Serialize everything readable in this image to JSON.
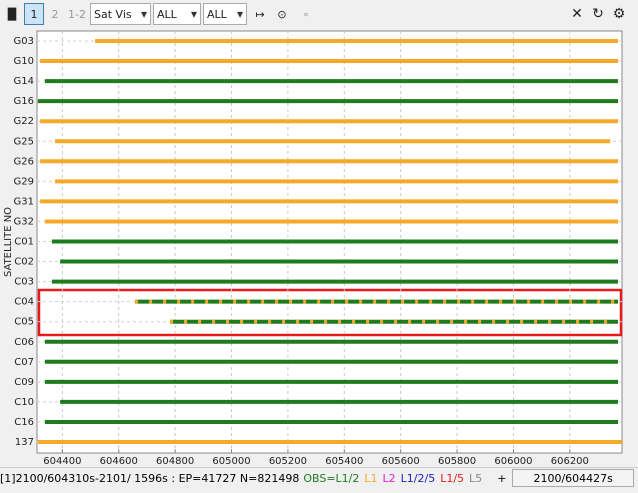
{
  "toolbar": {
    "pages": [
      "1",
      "2",
      "1-2"
    ],
    "selects": [
      "Sat Vis",
      "ALL",
      "ALL"
    ]
  },
  "chart_data": {
    "type": "timeline",
    "y_label": "SATELLITE NO",
    "xlim": [
      604310,
      606385
    ],
    "xticks": [
      604400,
      604600,
      604800,
      605000,
      605200,
      605400,
      605600,
      605800,
      606000,
      606200
    ],
    "grid": true,
    "series": [
      {
        "name": "G03",
        "color": "#f4aa28",
        "span": [
          604516,
          606371
        ]
      },
      {
        "name": "G10",
        "color": "#f4aa28",
        "span": [
          604321,
          606371
        ]
      },
      {
        "name": "G14",
        "color": "#1e7b1e",
        "span": [
          604338,
          606371
        ]
      },
      {
        "name": "G16",
        "color": "#1e7b1e",
        "span": [
          604313,
          606371
        ]
      },
      {
        "name": "G22",
        "color": "#f4aa28",
        "span": [
          604321,
          606371
        ]
      },
      {
        "name": "G25",
        "color": "#f4aa28",
        "span": [
          604374,
          606343
        ]
      },
      {
        "name": "G26",
        "color": "#f4aa28",
        "span": [
          604321,
          606371
        ]
      },
      {
        "name": "G29",
        "color": "#f4aa28",
        "span": [
          604374,
          606371
        ]
      },
      {
        "name": "G31",
        "color": "#f4aa28",
        "span": [
          604321,
          606371
        ]
      },
      {
        "name": "G32",
        "color": "#f4aa28",
        "span": [
          604338,
          606371
        ]
      },
      {
        "name": "C01",
        "color": "#1e7b1e",
        "span": [
          604363,
          606371
        ]
      },
      {
        "name": "C02",
        "color": "#1e7b1e",
        "span": [
          604392,
          606371
        ]
      },
      {
        "name": "C03",
        "color": "#1e7b1e",
        "span": [
          604363,
          606371
        ]
      },
      {
        "name": "C04",
        "color": "#1e7b1e",
        "color2": "#f4aa28",
        "span": [
          604658,
          606371
        ]
      },
      {
        "name": "C05",
        "color": "#1e7b1e",
        "color2": "#f4aa28",
        "span": [
          604782,
          606371
        ]
      },
      {
        "name": "C06",
        "color": "#1e7b1e",
        "span": [
          604338,
          606371
        ]
      },
      {
        "name": "C07",
        "color": "#1e7b1e",
        "span": [
          604338,
          606371
        ]
      },
      {
        "name": "C09",
        "color": "#1e7b1e",
        "span": [
          604338,
          606371
        ]
      },
      {
        "name": "C10",
        "color": "#1e7b1e",
        "span": [
          604392,
          606371
        ]
      },
      {
        "name": "C16",
        "color": "#1e7b1e",
        "span": [
          604338,
          606371
        ]
      },
      {
        "name": "137",
        "color": "#f4aa28",
        "span": [
          604313,
          606385
        ]
      }
    ]
  },
  "status": {
    "info": "[1]2100/604310s-2101/ 1596s : EP=41727 N=821498",
    "legend": [
      {
        "text": "OBS=L1/2",
        "color": "#1e7b1e"
      },
      {
        "text": "L1",
        "color": "#f4aa28"
      },
      {
        "text": "L2",
        "color": "#e020e0"
      },
      {
        "text": "L1/2/5",
        "color": "#2020c0"
      },
      {
        "text": "L1/5",
        "color": "#e02020"
      },
      {
        "text": "L5",
        "color": "#888888"
      }
    ],
    "plus": "+",
    "time": "2100/604427s"
  }
}
